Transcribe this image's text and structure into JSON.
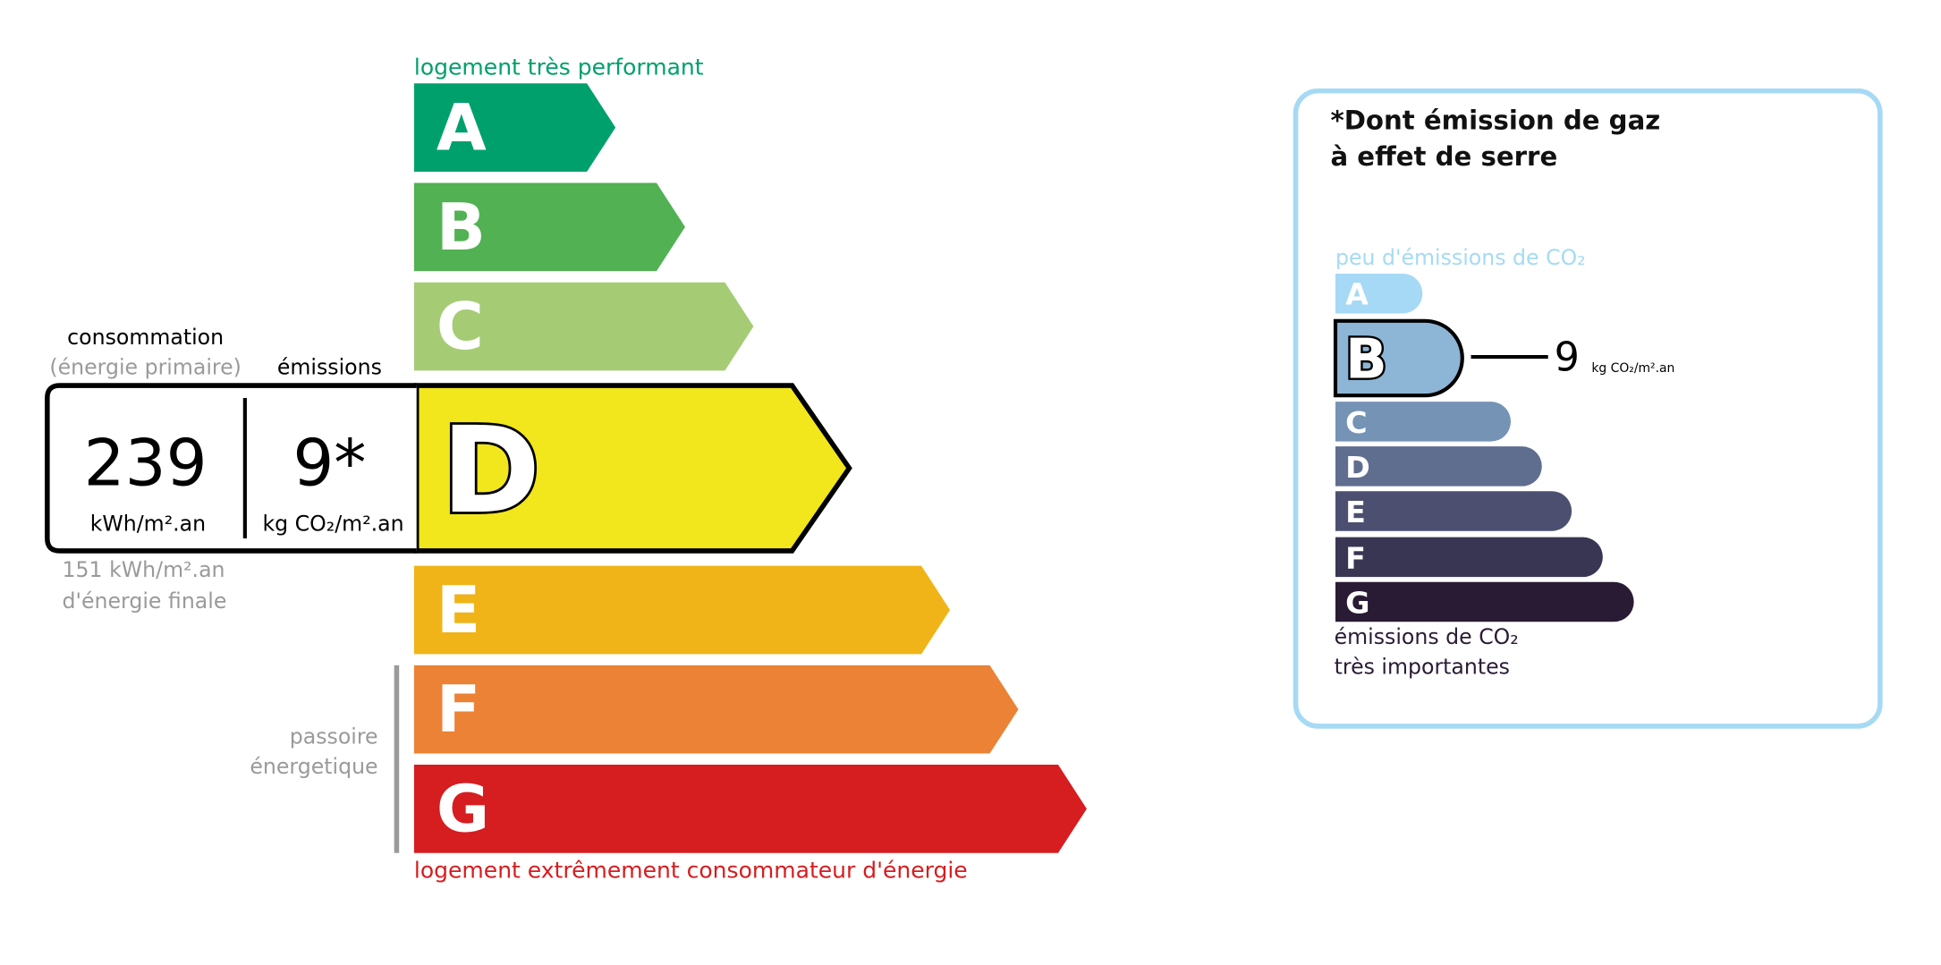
{
  "energy": {
    "top_label": "logement très performant",
    "bottom_label": "logement extrêmement consommateur d'énergie",
    "passoire_line1": "passoire",
    "passoire_line2": "énergetique",
    "current_class": "D",
    "classes": [
      {
        "letter": "A",
        "color": "#00a06d"
      },
      {
        "letter": "B",
        "color": "#52b153"
      },
      {
        "letter": "C",
        "color": "#a5cc74"
      },
      {
        "letter": "D",
        "color": "#f2e61c"
      },
      {
        "letter": "E",
        "color": "#f0b419"
      },
      {
        "letter": "F",
        "color": "#eb8235"
      },
      {
        "letter": "G",
        "color": "#d61d20"
      }
    ],
    "consumption_label": "consommation",
    "consumption_sublabel": "(énergie primaire)",
    "emissions_label": "émissions",
    "consumption_value": "239",
    "consumption_unit": "kWh/m².an",
    "emissions_value": "9*",
    "emissions_unit": "kg CO₂/m².an",
    "final_energy_value": "151 kWh/m².an",
    "final_energy_label": "d'énergie finale"
  },
  "ghg": {
    "title_line1": "*Dont émission de gaz",
    "title_line2": "à effet de serre",
    "top_label": "peu d'émissions de CO₂",
    "bottom_label_line1": "émissions de CO₂",
    "bottom_label_line2": "très importantes",
    "current_class": "B",
    "value": "9",
    "unit": "kg CO₂/m².an",
    "border_color": "#a6daf4",
    "classes": [
      {
        "letter": "A",
        "color": "#a5d9f5"
      },
      {
        "letter": "B",
        "color": "#8db5d5"
      },
      {
        "letter": "C",
        "color": "#7593b4"
      },
      {
        "letter": "D",
        "color": "#5f6d8f"
      },
      {
        "letter": "E",
        "color": "#4c4f6f"
      },
      {
        "letter": "F",
        "color": "#393653"
      },
      {
        "letter": "G",
        "color": "#2a1b35"
      }
    ]
  }
}
